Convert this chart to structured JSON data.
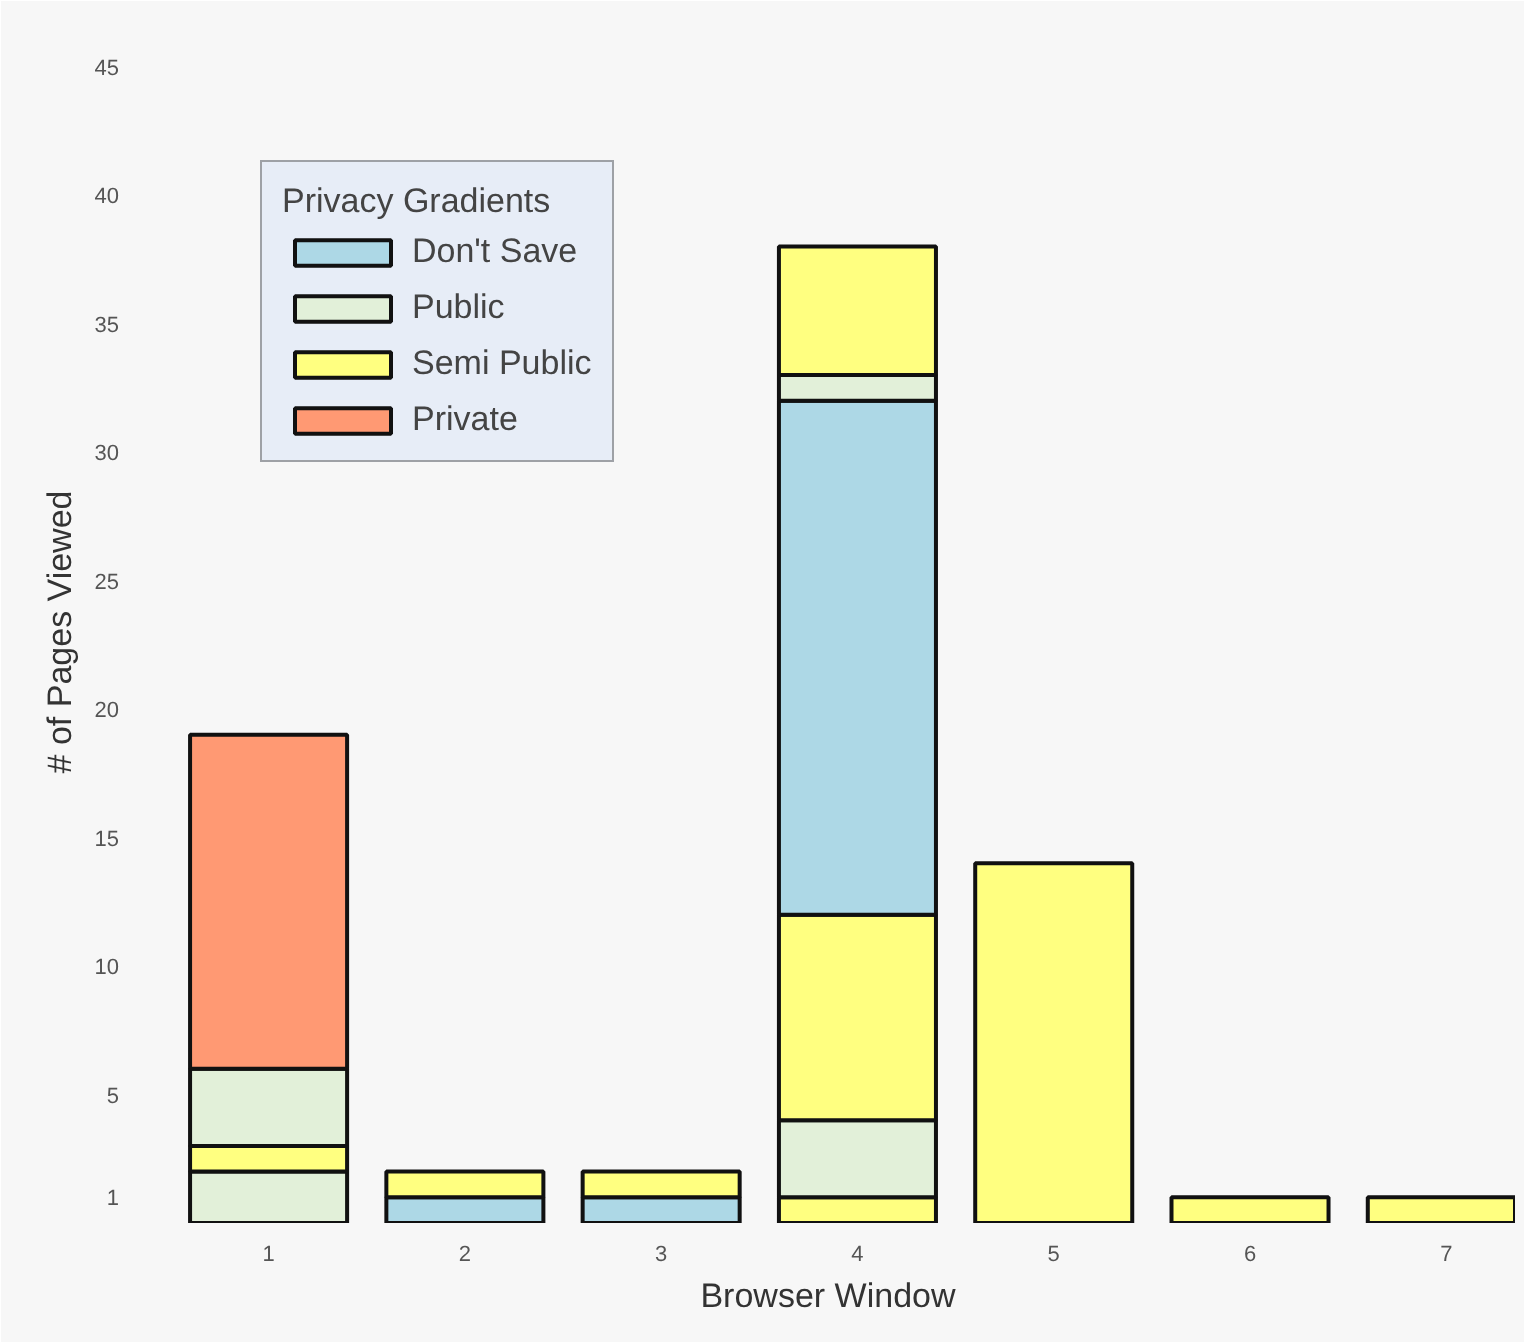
{
  "chart_data": {
    "type": "bar",
    "stacked": true,
    "xlabel": "Browser Window",
    "ylabel": "# of Pages Viewed",
    "legend_title": "Privacy Gradients",
    "legend": "top left",
    "grid": false,
    "categories": [
      "1",
      "2",
      "3",
      "4",
      "5",
      "6",
      "7"
    ],
    "ylim": [
      0,
      46
    ],
    "yticks": [
      1,
      5,
      10,
      15,
      20,
      25,
      30,
      35,
      40,
      45
    ],
    "series": [
      {
        "name": "Don't Save",
        "color": "#add8e6",
        "values": [
          null,
          1,
          1,
          null,
          null,
          null,
          null
        ]
      },
      {
        "name": "Public",
        "color": "#e2f0d9",
        "values": [
          2,
          null,
          null,
          null,
          null,
          null,
          null
        ]
      },
      {
        "name": "Semi Public",
        "color": "#ffff80",
        "values": [
          1,
          1,
          1,
          1,
          14,
          1,
          1
        ]
      },
      {
        "color": "#e2f0d9",
        "values": [
          3,
          null,
          null,
          3,
          null,
          null,
          null
        ]
      },
      {
        "color": "#ffff80",
        "values": [
          null,
          null,
          null,
          8,
          null,
          null,
          null
        ]
      },
      {
        "name": "Private",
        "color": "#ff9973",
        "values": [
          13,
          null,
          null,
          null,
          null,
          null,
          null
        ]
      },
      {
        "color": "#add8e6",
        "values": [
          null,
          null,
          null,
          20,
          null,
          null,
          null
        ]
      },
      {
        "color": "#e2f0d9",
        "values": [
          null,
          null,
          null,
          1,
          null,
          null,
          null
        ]
      },
      {
        "color": "#ffff80",
        "values": [
          null,
          null,
          null,
          5,
          null,
          null,
          null
        ]
      }
    ]
  }
}
